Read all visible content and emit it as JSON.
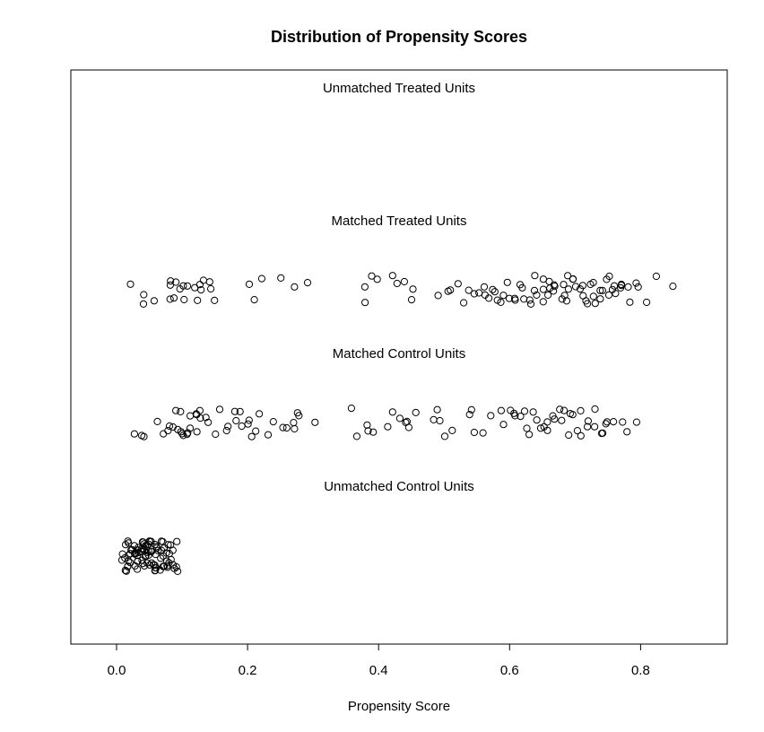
{
  "chart_data": {
    "type": "scatter",
    "title": "Distribution of Propensity Scores",
    "xlabel": "Propensity Score",
    "ylabel": "",
    "xlim": [
      -0.07,
      0.93
    ],
    "x_ticks": [
      {
        "value": 0.0,
        "label": "0.0"
      },
      {
        "value": 0.2,
        "label": "0.2"
      },
      {
        "value": 0.4,
        "label": "0.4"
      },
      {
        "value": 0.6,
        "label": "0.6"
      },
      {
        "value": 0.8,
        "label": "0.8"
      }
    ],
    "marker": "open-circle",
    "jitter": true,
    "groups": [
      {
        "label": "Unmatched Treated Units",
        "x": []
      },
      {
        "label": "Matched Treated Units",
        "x": [
          0.02,
          0.04,
          0.04,
          0.06,
          0.08,
          0.08,
          0.08,
          0.09,
          0.09,
          0.1,
          0.1,
          0.1,
          0.11,
          0.12,
          0.12,
          0.13,
          0.13,
          0.13,
          0.14,
          0.14,
          0.15,
          0.2,
          0.21,
          0.22,
          0.25,
          0.27,
          0.29,
          0.38,
          0.38,
          0.39,
          0.4,
          0.42,
          0.43,
          0.44,
          0.45,
          0.45,
          0.49,
          0.51,
          0.51,
          0.52,
          0.53,
          0.54,
          0.55,
          0.55,
          0.56,
          0.56,
          0.57,
          0.57,
          0.58,
          0.58,
          0.59,
          0.59,
          0.6,
          0.6,
          0.61,
          0.61,
          0.62,
          0.62,
          0.62,
          0.63,
          0.63,
          0.64,
          0.64,
          0.64,
          0.65,
          0.65,
          0.65,
          0.66,
          0.66,
          0.66,
          0.67,
          0.67,
          0.67,
          0.68,
          0.68,
          0.68,
          0.69,
          0.69,
          0.69,
          0.7,
          0.7,
          0.7,
          0.71,
          0.71,
          0.71,
          0.72,
          0.72,
          0.72,
          0.73,
          0.73,
          0.73,
          0.74,
          0.74,
          0.74,
          0.75,
          0.75,
          0.75,
          0.76,
          0.76,
          0.76,
          0.77,
          0.77,
          0.77,
          0.78,
          0.78,
          0.79,
          0.8,
          0.81,
          0.82,
          0.85
        ]
      },
      {
        "label": "Matched Control Units",
        "x": [
          0.03,
          0.04,
          0.04,
          0.06,
          0.07,
          0.08,
          0.08,
          0.09,
          0.09,
          0.09,
          0.1,
          0.1,
          0.1,
          0.1,
          0.11,
          0.11,
          0.11,
          0.11,
          0.12,
          0.12,
          0.12,
          0.13,
          0.13,
          0.14,
          0.14,
          0.15,
          0.16,
          0.17,
          0.17,
          0.18,
          0.18,
          0.19,
          0.19,
          0.2,
          0.2,
          0.21,
          0.21,
          0.22,
          0.23,
          0.24,
          0.25,
          0.26,
          0.27,
          0.27,
          0.28,
          0.28,
          0.3,
          0.36,
          0.37,
          0.38,
          0.38,
          0.39,
          0.41,
          0.42,
          0.43,
          0.44,
          0.44,
          0.45,
          0.46,
          0.48,
          0.49,
          0.49,
          0.5,
          0.51,
          0.54,
          0.54,
          0.55,
          0.56,
          0.57,
          0.59,
          0.59,
          0.6,
          0.61,
          0.61,
          0.62,
          0.62,
          0.63,
          0.63,
          0.64,
          0.64,
          0.65,
          0.65,
          0.66,
          0.66,
          0.67,
          0.67,
          0.68,
          0.68,
          0.68,
          0.69,
          0.69,
          0.7,
          0.7,
          0.71,
          0.71,
          0.72,
          0.72,
          0.73,
          0.73,
          0.74,
          0.74,
          0.75,
          0.75,
          0.76,
          0.77,
          0.78,
          0.79
        ]
      },
      {
        "label": "Unmatched Control Units",
        "x": [
          0.01,
          0.01,
          0.01,
          0.01,
          0.02,
          0.02,
          0.02,
          0.02,
          0.02,
          0.02,
          0.03,
          0.03,
          0.03,
          0.03,
          0.03,
          0.03,
          0.03,
          0.03,
          0.04,
          0.04,
          0.04,
          0.04,
          0.04,
          0.04,
          0.04,
          0.04,
          0.04,
          0.05,
          0.05,
          0.05,
          0.05,
          0.05,
          0.05,
          0.05,
          0.05,
          0.05,
          0.06,
          0.06,
          0.06,
          0.06,
          0.06,
          0.06,
          0.06,
          0.06,
          0.07,
          0.07,
          0.07,
          0.07,
          0.07,
          0.07,
          0.07,
          0.08,
          0.08,
          0.08,
          0.08,
          0.08,
          0.08,
          0.09,
          0.09,
          0.09,
          0.09,
          0.02,
          0.03,
          0.04,
          0.05,
          0.06,
          0.01,
          0.02,
          0.03,
          0.04,
          0.05,
          0.06,
          0.07,
          0.08,
          0.09,
          0.015,
          0.025,
          0.035,
          0.045,
          0.055,
          0.065,
          0.075,
          0.085,
          0.015,
          0.025,
          0.035,
          0.045,
          0.055,
          0.065,
          0.075
        ]
      }
    ],
    "grid": false,
    "legend": "none"
  }
}
